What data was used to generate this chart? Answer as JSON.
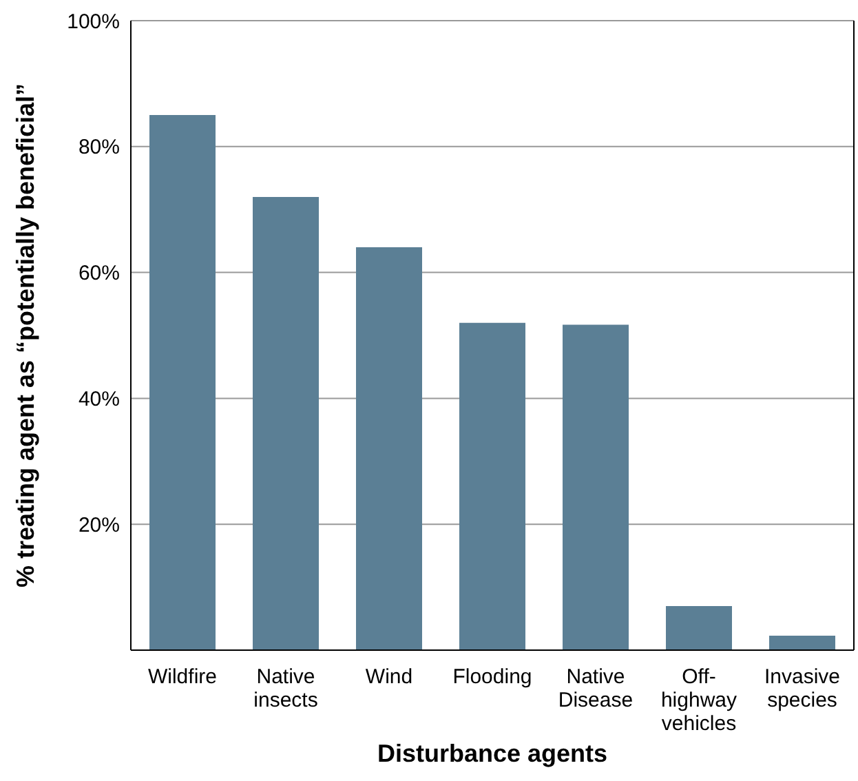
{
  "chart_data": {
    "type": "bar",
    "xlabel": "Disturbance agents",
    "ylabel": "% treating agent as “potentially beneficial”",
    "categories": [
      "Wildfire",
      "Native\ninsects",
      "Wind",
      "Flooding",
      "Native\nDisease",
      "Off-\nhighway\nvehicles",
      "Invasive\nspecies"
    ],
    "values": [
      85,
      72,
      64,
      52,
      51.7,
      7,
      2.3
    ],
    "color": "#5b7f95",
    "ylim": [
      0,
      100
    ],
    "yticks": [
      {
        "value": 20,
        "label": "20%"
      },
      {
        "value": 40,
        "label": "40%"
      },
      {
        "value": 60,
        "label": "60%"
      },
      {
        "value": 80,
        "label": "80%"
      },
      {
        "value": 100,
        "label": "100%"
      }
    ],
    "grid": "y"
  }
}
